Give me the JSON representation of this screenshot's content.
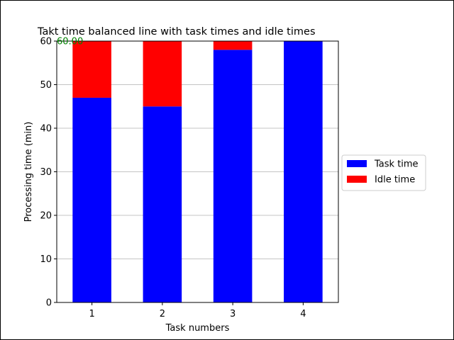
{
  "chart_data": {
    "type": "bar",
    "stacked": true,
    "title": "Takt time balanced line with task times and idle times",
    "xlabel": "Task numbers",
    "ylabel": "Processing time (min)",
    "categories": [
      "1",
      "2",
      "3",
      "4"
    ],
    "series": [
      {
        "name": "Task time",
        "values": [
          47,
          45,
          58,
          60
        ],
        "color": "#0000ff"
      },
      {
        "name": "Idle time",
        "values": [
          13,
          15,
          2,
          0
        ],
        "color": "#ff0000"
      }
    ],
    "ylim": [
      0,
      60
    ],
    "yticks": [
      0,
      10,
      20,
      30,
      40,
      50,
      60
    ],
    "grid": "y",
    "legend_position": "center-right",
    "takt_line": {
      "value": 60,
      "label": "60.00",
      "color": "#008000"
    }
  }
}
